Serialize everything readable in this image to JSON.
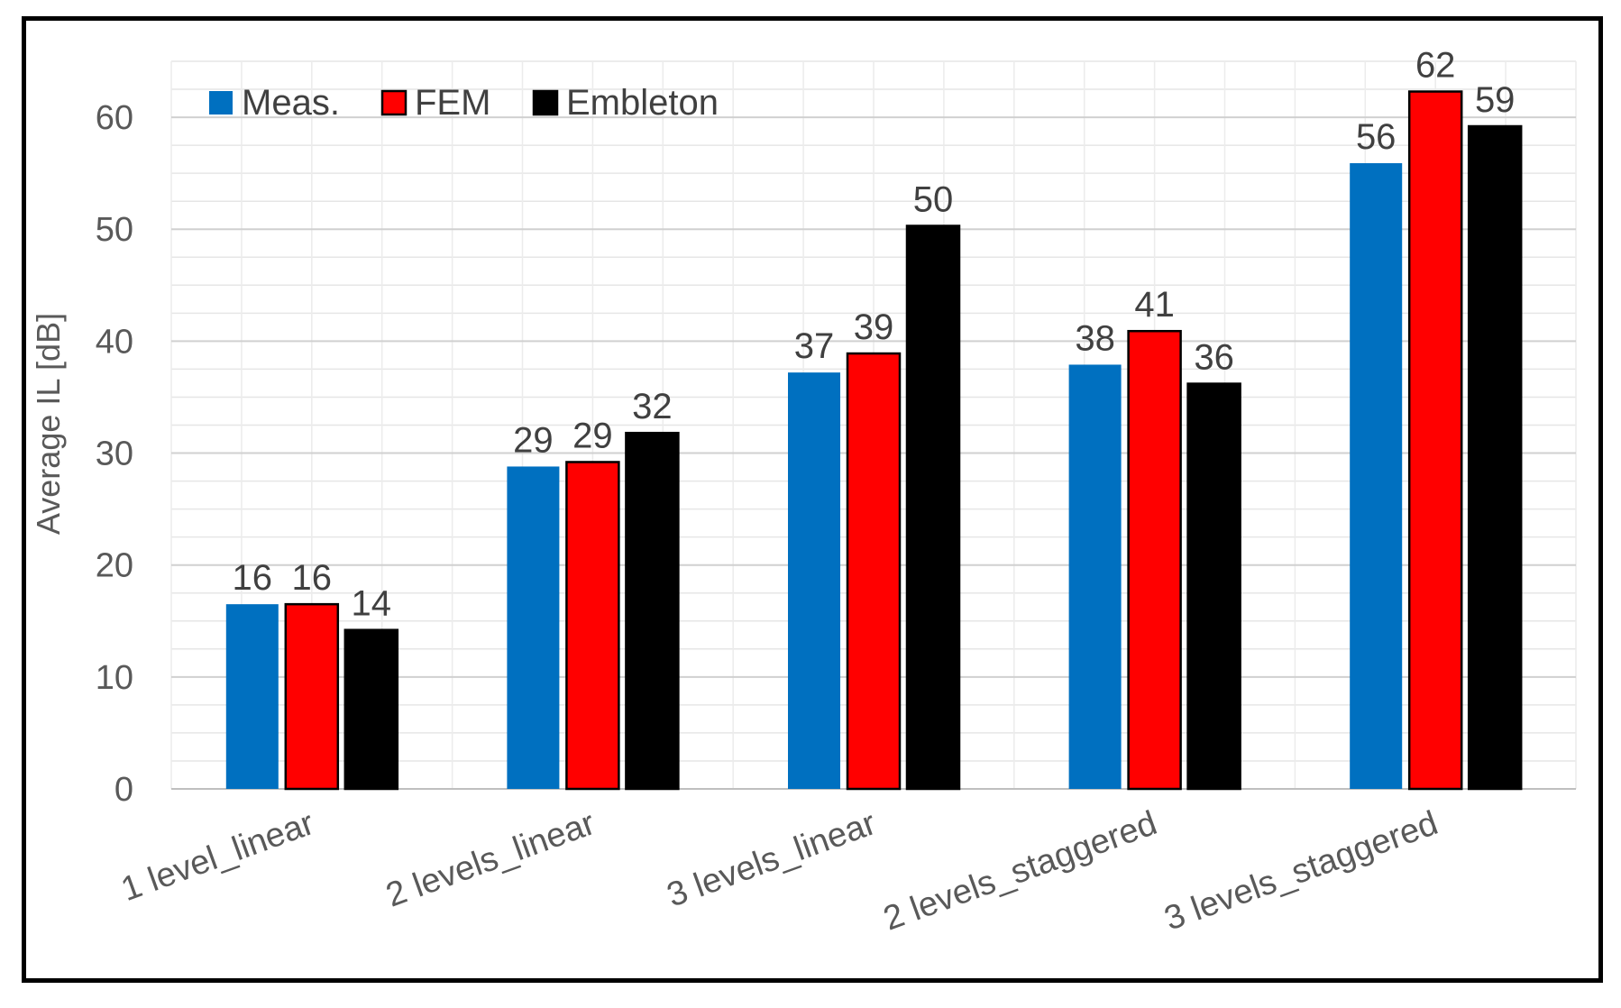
{
  "chart_data": {
    "type": "bar",
    "title": "",
    "xlabel": "",
    "ylabel": "Average IL [dB]",
    "ylim": [
      0,
      65
    ],
    "y_ticks": [
      0,
      10,
      20,
      30,
      40,
      50,
      60
    ],
    "grid": true,
    "legend_position": "top-left",
    "categories": [
      "1 level_linear",
      "2 levels_linear",
      "3 levels_linear",
      "2 levels_staggered",
      "3 levels_staggered"
    ],
    "series": [
      {
        "name": "Meas.",
        "color": "#0070C0",
        "values": [
          16.5,
          28.8,
          37.2,
          37.9,
          55.9
        ],
        "labels": [
          "16",
          "29",
          "37",
          "38",
          "56"
        ]
      },
      {
        "name": "FEM",
        "color": "#FF0000",
        "values": [
          16.5,
          29.2,
          38.9,
          40.9,
          62.3
        ],
        "labels": [
          "16",
          "29",
          "39",
          "41",
          "62"
        ]
      },
      {
        "name": "Embleton",
        "color": "#000000",
        "values": [
          14.2,
          31.8,
          50.3,
          36.2,
          59.2
        ],
        "labels": [
          "14",
          "32",
          "50",
          "36",
          "59"
        ]
      }
    ]
  }
}
